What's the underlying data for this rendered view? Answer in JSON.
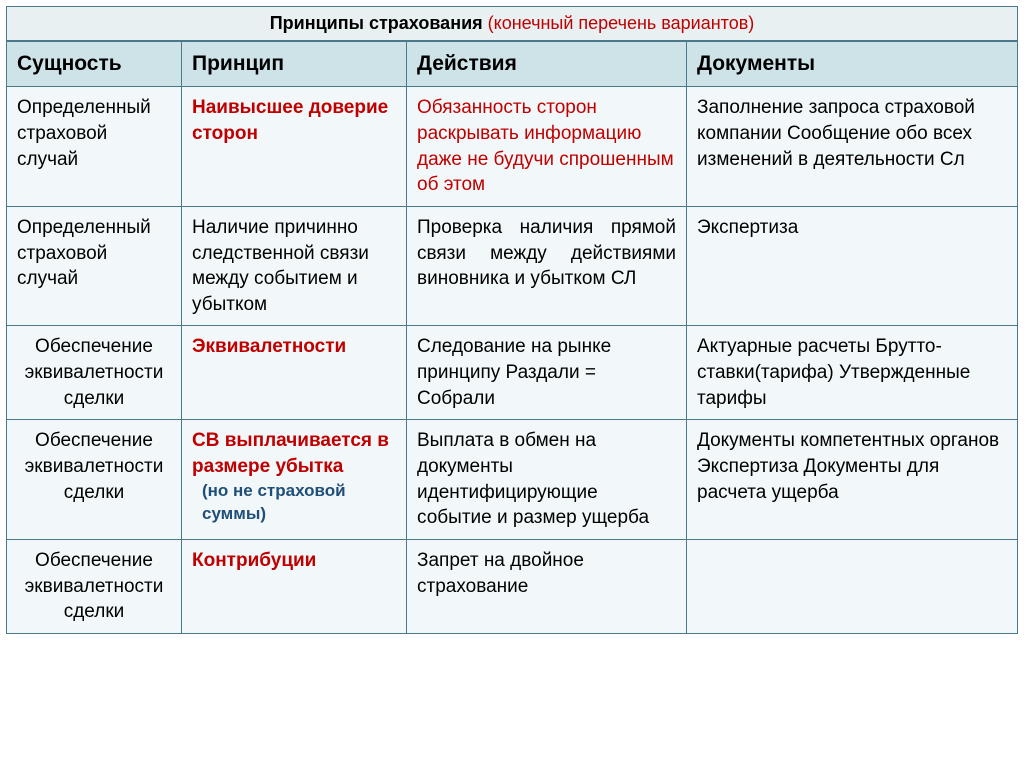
{
  "colors": {
    "header_bg": "#cde3e8",
    "cell_bg": "#f2f8f9",
    "border": "#4a7a8a",
    "red": "#c00000",
    "blue": "#1f4e79",
    "black": "#000000"
  },
  "typography": {
    "font_family": "Arial",
    "title_fontsize": 18,
    "header_fontsize": 21,
    "cell_fontsize": 19,
    "note_fontsize": 17
  },
  "title": {
    "main": "Принципы страхования ",
    "sub": "(конечный перечень вариантов)"
  },
  "headers": {
    "c1": "Сущность",
    "c2": "Принцип",
    "c3": "Действия",
    "c4": "Документы"
  },
  "rows": [
    {
      "essence": "Определенный страховой случай",
      "principle": "Наивысшее доверие сторон",
      "principle_style": "red-bold",
      "actions": "Обязанность сторон раскрывать информацию даже не будучи спрошенным об этом",
      "actions_style": "red",
      "docs": "Заполнение запроса страховой компании Сообщение обо всех изменений в деятельности Сл"
    },
    {
      "essence": "Определенный страховой случай",
      "principle": "Наличие причинно следственной связи между событием и убытком",
      "principle_style": "",
      "actions": "Проверка наличия прямой связи между действиями виновника и убытком СЛ",
      "actions_style": "",
      "actions_justify": true,
      "docs": "Экспертиза"
    },
    {
      "essence": "Обеспечение эквивалетности сделки",
      "essence_center": true,
      "principle": "Эквивалетности",
      "principle_style": "red-bold",
      "actions": "Следование на рынке принципу  Раздали = Собрали",
      "actions_style": "",
      "docs": "Актуарные расчеты Брутто-ставки(тарифа) Утвержденные тарифы"
    },
    {
      "essence": "Обеспечение эквивалетности сделки",
      "essence_center": true,
      "principle": "СВ выплачивается в размере убытка",
      "principle_style": "red-bold",
      "principle_note": "(но не страховой суммы)",
      "actions": "Выплата в обмен на документы идентифицирующие событие и размер ущерба",
      "actions_style": "",
      "docs": "Документы компетентных органов Экспертиза Документы для расчета ущерба"
    },
    {
      "essence": "Обеспечение эквивалетности сделки",
      "essence_center": true,
      "principle": "Контрибуции",
      "principle_style": "red-bold",
      "actions": "Запрет на двойное страхование",
      "actions_style": "",
      "docs": ""
    }
  ]
}
